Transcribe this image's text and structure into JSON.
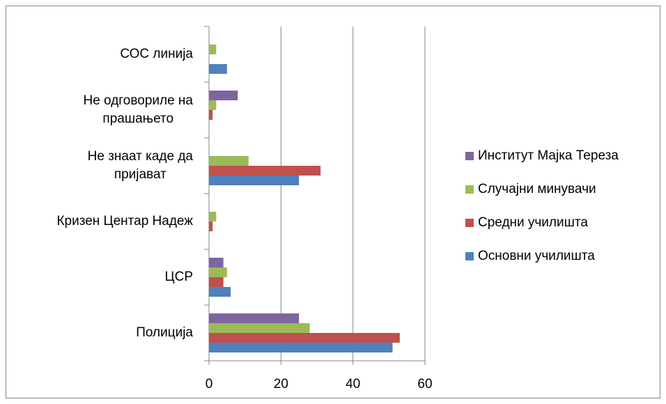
{
  "chart_data": {
    "type": "hbar",
    "categories": [
      "Полиција",
      "ЦСР",
      "Кризен Центар Надеж",
      "Не знаат каде да\nпријават",
      "Не одговориле на\nпрашањето",
      "СОС линија"
    ],
    "series": [
      {
        "name": "Основни училишта",
        "color": "#4f81bd",
        "values": [
          51,
          6,
          0,
          25,
          0,
          5
        ]
      },
      {
        "name": "Средни училишта",
        "color": "#c0504d",
        "values": [
          53,
          4,
          1,
          31,
          1,
          0
        ]
      },
      {
        "name": "Случајни минувачи",
        "color": "#9bbb59",
        "values": [
          28,
          5,
          2,
          11,
          2,
          2
        ]
      },
      {
        "name": "Институт Мајка Тереза",
        "color": "#8064a2",
        "values": [
          25,
          4,
          0,
          0,
          8,
          0
        ]
      }
    ],
    "xlim": [
      0,
      60
    ],
    "xticks": [
      0,
      20,
      40,
      60
    ],
    "grid": true,
    "legend": "right"
  }
}
